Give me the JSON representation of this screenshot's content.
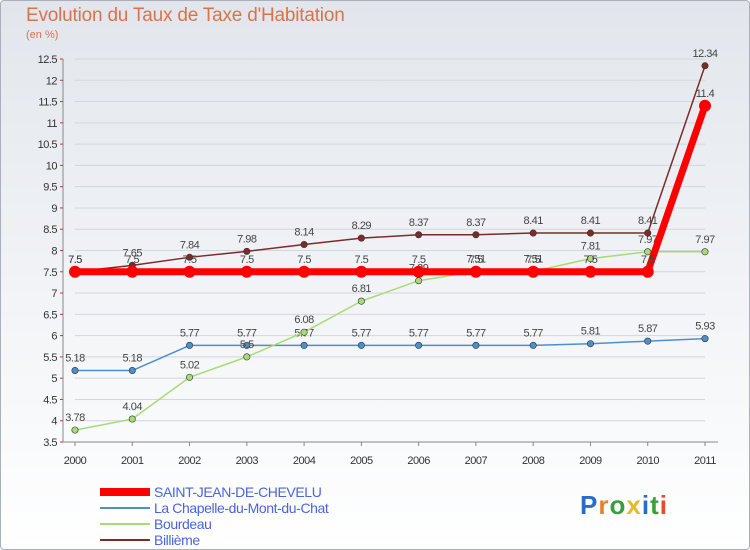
{
  "title": "Evolution du Taux de Taxe d'Habitation",
  "subtitle": "(en %)",
  "logo": {
    "parts": [
      "P",
      "r",
      "o",
      "x",
      "i",
      "t",
      "i"
    ],
    "colors": [
      "#2b6cc4",
      "#e8812a",
      "#3b9d3b",
      "#e8b92a",
      "#2b6cc4",
      "#3b9d3b",
      "#e84a2a"
    ]
  },
  "chart_data": {
    "type": "line",
    "title": "Evolution du Taux de Taxe d'Habitation",
    "ylabel": "(en %)",
    "xlabel": "",
    "x": [
      "2000",
      "2001",
      "2002",
      "2003",
      "2004",
      "2005",
      "2006",
      "2007",
      "2008",
      "2009",
      "2010",
      "2011"
    ],
    "ylim": [
      3.5,
      12.5
    ],
    "yticks": [
      "3.5",
      "4",
      "4.5",
      "5",
      "5.5",
      "6",
      "6.5",
      "7",
      "7.5",
      "8",
      "8.5",
      "9",
      "9.5",
      "10",
      "10.5",
      "11",
      "11.5",
      "12",
      "12.5"
    ],
    "series": [
      {
        "name": "La Chapelle-du-Mont-du-Chat",
        "color": "#4d8fcb",
        "values": [
          5.18,
          5.18,
          5.77,
          5.77,
          5.77,
          5.77,
          5.77,
          5.77,
          5.77,
          5.81,
          5.87,
          5.93
        ],
        "labels": [
          "5.18",
          "5.18",
          "5.77",
          "5.77",
          "5.77",
          "5.77",
          "5.77",
          "5.77",
          "5.77",
          "5.81",
          "5.87",
          "5.93"
        ]
      },
      {
        "name": "Bourdeau",
        "color": "#a8db76",
        "values": [
          3.78,
          4.04,
          5.02,
          5.5,
          6.08,
          6.81,
          7.29,
          7.51,
          7.51,
          7.81,
          7.97,
          7.97
        ],
        "labels": [
          "3.78",
          "4.04",
          "5.02",
          "5.5",
          "6.08",
          "6.81",
          "7.29",
          "7.51",
          "7.51",
          "7.81",
          "7.97",
          "7.97"
        ]
      },
      {
        "name": "Billième",
        "color": "#7d2a2a",
        "values": [
          7.5,
          7.65,
          7.84,
          7.98,
          8.14,
          8.29,
          8.37,
          8.37,
          8.41,
          8.41,
          8.41,
          12.34
        ],
        "labels": [
          "7.5",
          "7.65",
          "7.84",
          "7.98",
          "8.14",
          "8.29",
          "8.37",
          "8.37",
          "8.41",
          "8.41",
          "8.41",
          "12.34"
        ]
      },
      {
        "name": "SAINT-JEAN-DE-CHEVELU",
        "color": "#ff0000",
        "values": [
          7.5,
          7.5,
          7.5,
          7.5,
          7.5,
          7.5,
          7.5,
          7.5,
          7.5,
          7.5,
          7.5,
          11.4
        ],
        "labels": [
          "7.5",
          "7.5",
          "7.5",
          "7.5",
          "7.5",
          "7.5",
          "7.5",
          "7.5",
          "7.5",
          "7.5",
          "7.5",
          "11.4"
        ]
      }
    ],
    "legend": [
      "SAINT-JEAN-DE-CHEVELU",
      "La Chapelle-du-Mont-du-Chat",
      "Bourdeau",
      "Billième"
    ],
    "legend_position": "bottom-left"
  }
}
